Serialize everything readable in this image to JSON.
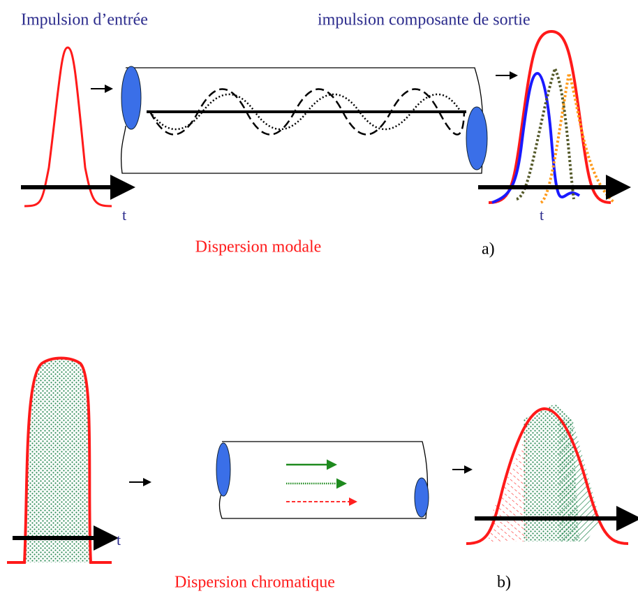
{
  "panel_a": {
    "input_label": "Impulsion d’entrée",
    "output_label": "impulsion composante de sortie",
    "input_axis_label": "t",
    "output_axis_label": "t",
    "caption": "Dispersion modale",
    "tag": "a)"
  },
  "panel_b": {
    "input_axis_label": "t",
    "caption": "Dispersion chromatique",
    "tag": "b)"
  }
}
